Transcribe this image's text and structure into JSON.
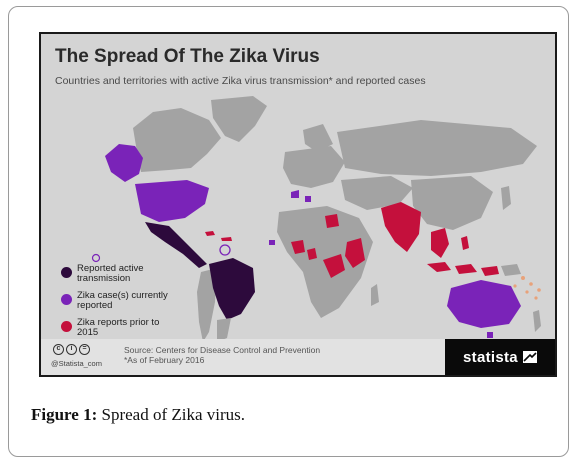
{
  "title": "The Spread Of The Zika Virus",
  "subtitle": "Countries and territories with active Zika virus transmission* and reported cases",
  "legend": [
    {
      "label": "Reported active transmission",
      "color": "#2d0a3c"
    },
    {
      "label": "Zika case(s) currently reported",
      "color": "#7a23b8"
    },
    {
      "label": "Zika reports prior to 2015",
      "color": "#c4103c"
    }
  ],
  "colors": {
    "land": "#a3a3a3",
    "background": "#d4d4d4",
    "active_transmission": "#2d0a3c",
    "cases_reported": "#7a23b8",
    "prior_2015": "#c4103c",
    "pacific_islands": "#e8a27a"
  },
  "footer": {
    "handle": "@Statista_com",
    "source_line1": "Source: Centers for Disease Control and Prevention",
    "source_line2": "*As of February 2016",
    "brand": "statista"
  },
  "caption": {
    "label": "Figure 1:",
    "text": "Spread of Zika virus."
  }
}
